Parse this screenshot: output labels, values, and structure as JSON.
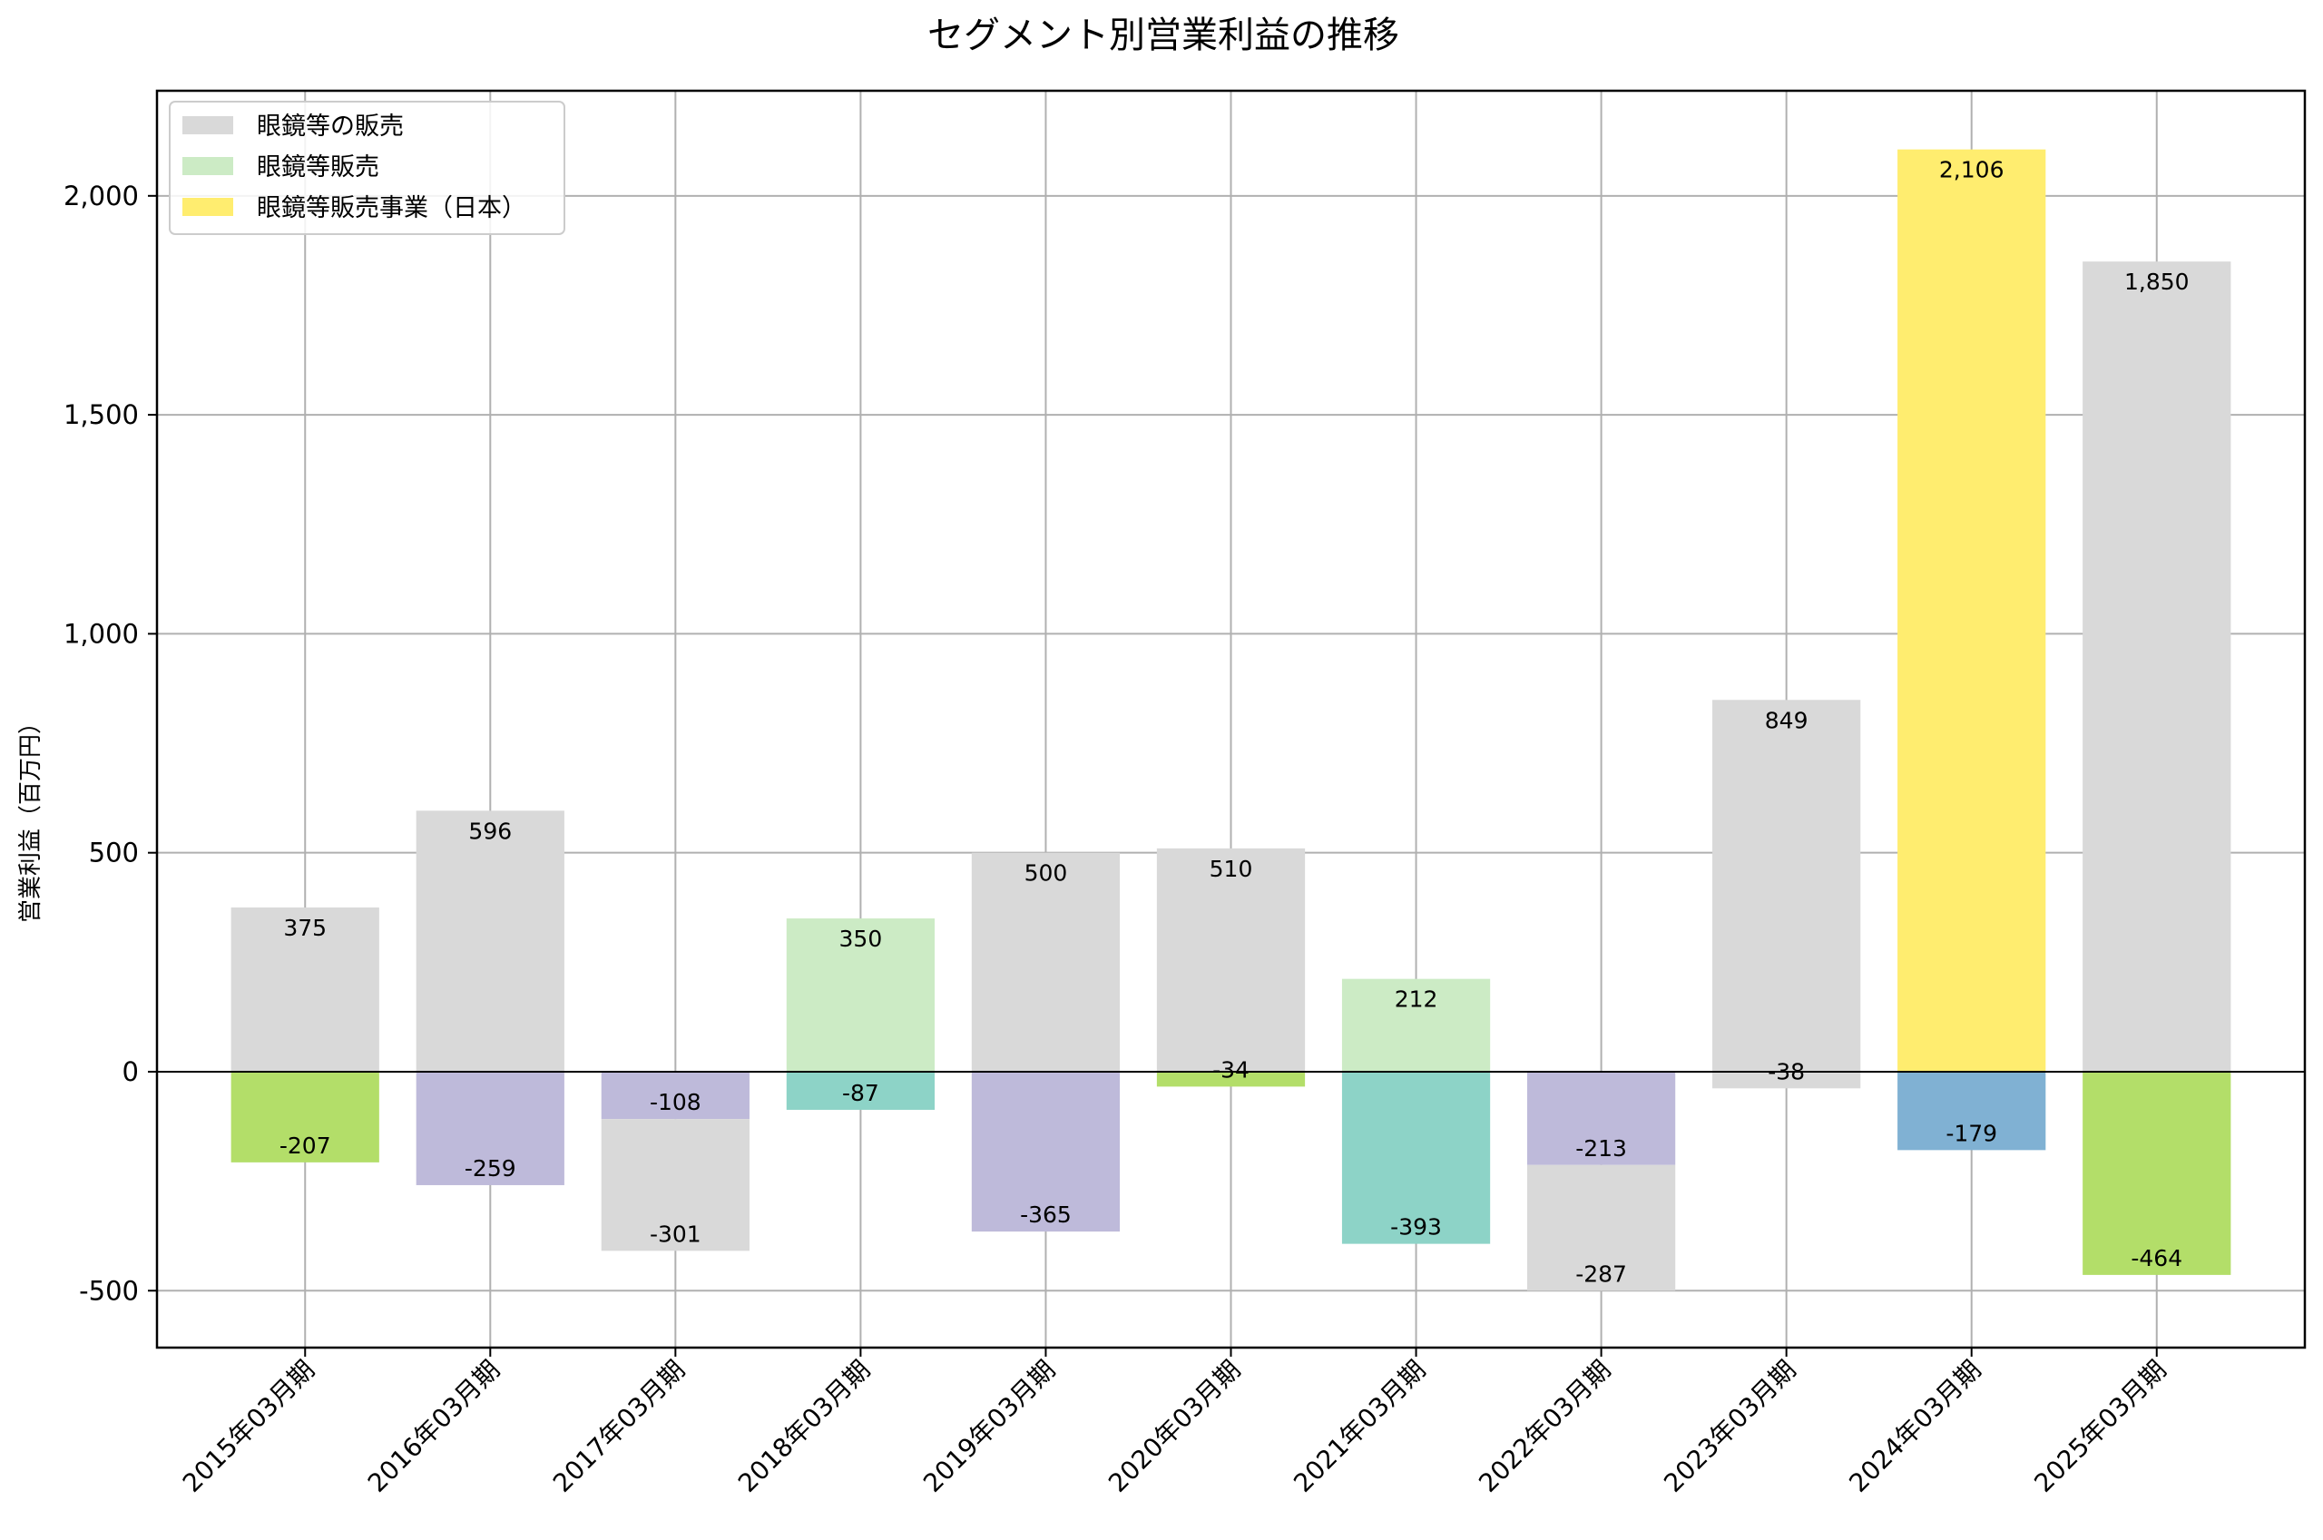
{
  "chart_data": {
    "type": "bar",
    "stacked": true,
    "title": "セグメント別営業利益の推移",
    "xlabel": "",
    "ylabel": "営業利益（百万円）",
    "ylim": [
      -630,
      2240
    ],
    "yticks": [
      -500,
      0,
      500,
      1000,
      1500,
      2000
    ],
    "ytick_labels": [
      "-500",
      "0",
      "500",
      "1,000",
      "1,500",
      "2,000"
    ],
    "grid": true,
    "legend_position": "top-left",
    "categories": [
      "2015年03月期",
      "2016年03月期",
      "2017年03月期",
      "2018年03月期",
      "2019年03月期",
      "2020年03月期",
      "2021年03月期",
      "2022年03月期",
      "2023年03月期",
      "2024年03月期",
      "2025年03月期"
    ],
    "legend": [
      {
        "label": "眼鏡等の販売",
        "color": "#d9d9d9"
      },
      {
        "label": "眼鏡等販売",
        "color": "#ccebc5"
      },
      {
        "label": "眼鏡等販売事業（日本）",
        "color": "#ffed6f"
      }
    ],
    "bars": [
      [
        {
          "value": 375,
          "label": "375",
          "color": "#d9d9d9"
        },
        {
          "value": -207,
          "label": "-207",
          "color": "#b3de69"
        }
      ],
      [
        {
          "value": 596,
          "label": "596",
          "color": "#d9d9d9"
        },
        {
          "value": -259,
          "label": "-259",
          "color": "#bebada"
        }
      ],
      [
        {
          "value": -108,
          "label": "-108",
          "color": "#bebada"
        },
        {
          "value": -301,
          "label": "-301",
          "color": "#d9d9d9"
        }
      ],
      [
        {
          "value": 350,
          "label": "350",
          "color": "#ccebc5"
        },
        {
          "value": -87,
          "label": "-87",
          "color": "#8dd3c7"
        }
      ],
      [
        {
          "value": 500,
          "label": "500",
          "color": "#d9d9d9"
        },
        {
          "value": -365,
          "label": "-365",
          "color": "#bebada"
        }
      ],
      [
        {
          "value": 510,
          "label": "510",
          "color": "#d9d9d9"
        },
        {
          "value": -34,
          "label": "-34",
          "color": "#b3de69"
        }
      ],
      [
        {
          "value": 212,
          "label": "212",
          "color": "#ccebc5"
        },
        {
          "value": -393,
          "label": "-393",
          "color": "#8dd3c7"
        }
      ],
      [
        {
          "value": -213,
          "label": "-213",
          "color": "#bebada"
        },
        {
          "value": -287,
          "label": "-287",
          "color": "#d9d9d9"
        }
      ],
      [
        {
          "value": 849,
          "label": "849",
          "color": "#d9d9d9"
        },
        {
          "value": -38,
          "label": "-38",
          "color": "#d9d9d9"
        }
      ],
      [
        {
          "value": 2106,
          "label": "2,106",
          "color": "#ffed6f"
        },
        {
          "value": -179,
          "label": "-179",
          "color": "#80b1d3"
        }
      ],
      [
        {
          "value": 1850,
          "label": "1,850",
          "color": "#d9d9d9"
        },
        {
          "value": -464,
          "label": "-464",
          "color": "#b3de69"
        }
      ]
    ]
  }
}
